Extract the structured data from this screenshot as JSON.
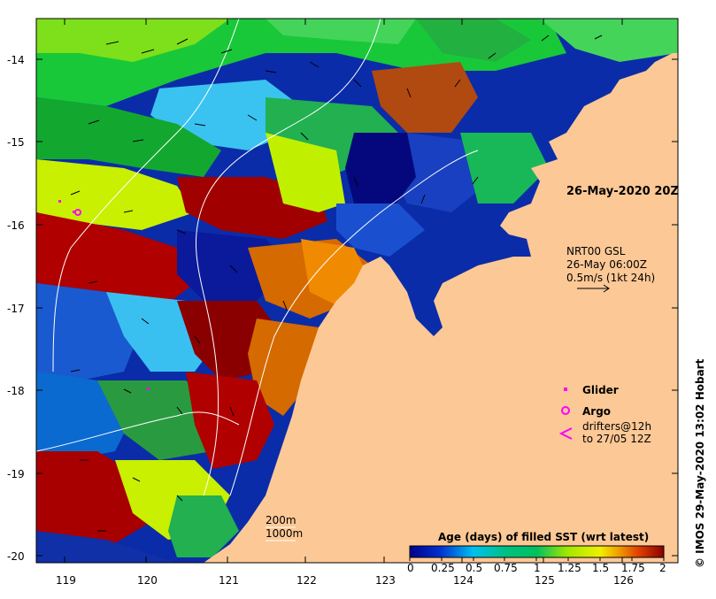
{
  "map": {
    "date_label": "26-May-2020 20Z",
    "lat_ticks": [
      "-14",
      "-15",
      "-16",
      "-17",
      "-18",
      "-19",
      "-20"
    ],
    "lon_ticks": [
      "119",
      "120",
      "121",
      "122",
      "123",
      "124",
      "125",
      "126"
    ],
    "current_info": {
      "line1": "NRT00 GSL",
      "line2": "26-May 06:00Z",
      "line3": "0.5m/s (1kt 24h)"
    },
    "legend": {
      "glider": "Glider",
      "argo": "Argo",
      "drifters_line1": "drifters@12h",
      "drifters_line2": "to 27/05 12Z"
    },
    "contours": {
      "c200": "200m",
      "c1000": "1000m"
    },
    "colorbar": {
      "title": "Age (days) of filled SST (wrt latest)",
      "ticks": [
        "0",
        "0.25",
        "0.5",
        "0.75",
        "1",
        "1.25",
        "1.5",
        "1.75",
        "2"
      ]
    },
    "credit": "© IMOS 29-May-2020 13:02 Hobart",
    "colors": {
      "land": "#fcc896",
      "marker": "#ff00ff",
      "age_0": "#00008b",
      "age_0_5": "#00c0f0",
      "age_1": "#00c060",
      "age_1_5": "#f0f000",
      "age_2": "#8b0000"
    }
  }
}
